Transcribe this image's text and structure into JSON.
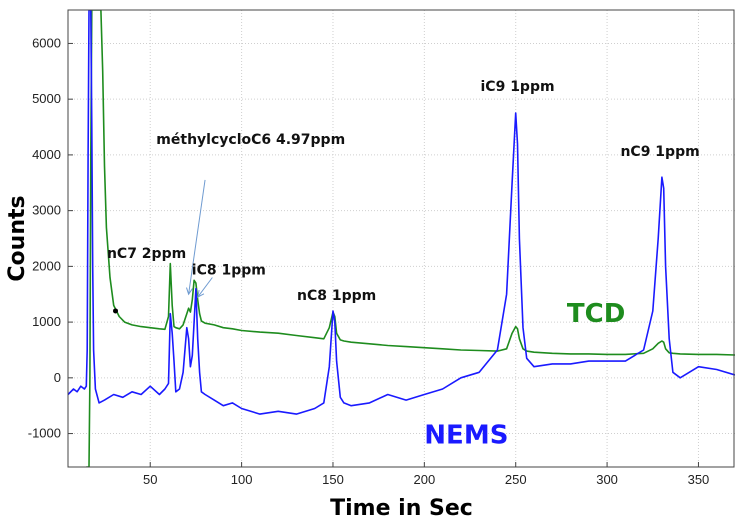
{
  "chart_data": {
    "type": "line",
    "xlabel": "Time in Sec",
    "ylabel": "Counts",
    "xlim": [
      5,
      370
    ],
    "ylim": [
      -1600,
      6600
    ],
    "xticks": [
      50,
      100,
      150,
      200,
      250,
      300,
      350
    ],
    "yticks": [
      -1000,
      0,
      1000,
      2000,
      3000,
      4000,
      5000,
      6000
    ],
    "grid": true,
    "colors": {
      "TCD": "#1e8c1e",
      "NEMS": "#1a1aff"
    },
    "series": [
      {
        "name": "TCD",
        "x": [
          15,
          15.5,
          16.5,
          17,
          17.5,
          18,
          18.5,
          19,
          20,
          21,
          22,
          23,
          24,
          25,
          26,
          28,
          30,
          33,
          36,
          40,
          45,
          50,
          55,
          58,
          60,
          61,
          62,
          63,
          64,
          66,
          68,
          70,
          71,
          72,
          73,
          74,
          75,
          76,
          77,
          78,
          80,
          85,
          90,
          95,
          100,
          110,
          120,
          130,
          140,
          145,
          148,
          150,
          151,
          152,
          154,
          156,
          160,
          170,
          180,
          190,
          200,
          210,
          220,
          230,
          240,
          245,
          248,
          250,
          251,
          252,
          254,
          256,
          260,
          270,
          280,
          290,
          300,
          310,
          320,
          325,
          328,
          330,
          331,
          332,
          334,
          336,
          340,
          350,
          360,
          370
        ],
        "y": [
          -1600,
          -1600,
          -1600,
          0,
          4000,
          6600,
          6600,
          6600,
          6600,
          6600,
          6600,
          6600,
          5500,
          3800,
          2700,
          1800,
          1300,
          1100,
          1000,
          950,
          920,
          900,
          880,
          870,
          1100,
          2050,
          1300,
          920,
          900,
          880,
          950,
          1150,
          1250,
          1180,
          1400,
          1750,
          1700,
          1400,
          1150,
          1020,
          980,
          950,
          900,
          880,
          850,
          820,
          800,
          760,
          720,
          700,
          900,
          1180,
          1100,
          800,
          680,
          660,
          640,
          610,
          580,
          560,
          540,
          520,
          500,
          490,
          480,
          520,
          800,
          920,
          880,
          700,
          520,
          480,
          460,
          440,
          430,
          430,
          420,
          420,
          440,
          520,
          620,
          660,
          640,
          520,
          450,
          440,
          430,
          420,
          420,
          410
        ]
      },
      {
        "name": "NEMS",
        "x": [
          5,
          8,
          10,
          12,
          14,
          15,
          15.5,
          16,
          16.5,
          17,
          17.5,
          18,
          18.5,
          19,
          20,
          22,
          25,
          30,
          35,
          40,
          45,
          50,
          55,
          58,
          60,
          61,
          62,
          63,
          64,
          66,
          68,
          70,
          71,
          72,
          73,
          74,
          75,
          76,
          77,
          78,
          80,
          85,
          90,
          95,
          100,
          110,
          120,
          130,
          140,
          145,
          148,
          150,
          151,
          152,
          154,
          156,
          160,
          170,
          180,
          190,
          200,
          210,
          220,
          230,
          240,
          245,
          248,
          250,
          251,
          252,
          254,
          256,
          260,
          270,
          280,
          290,
          300,
          310,
          320,
          325,
          328,
          330,
          331,
          332,
          334,
          336,
          340,
          350,
          360,
          370
        ],
        "y": [
          -300,
          -200,
          -250,
          -150,
          -200,
          -150,
          500,
          4000,
          6600,
          6600,
          6600,
          4500,
          2000,
          500,
          -200,
          -450,
          -400,
          -300,
          -350,
          -250,
          -300,
          -150,
          -300,
          -200,
          -100,
          1150,
          800,
          300,
          -250,
          -200,
          100,
          900,
          700,
          200,
          400,
          1000,
          1600,
          700,
          100,
          -250,
          -300,
          -400,
          -500,
          -450,
          -550,
          -650,
          -600,
          -650,
          -550,
          -450,
          200,
          1200,
          1000,
          300,
          -350,
          -450,
          -500,
          -450,
          -300,
          -400,
          -300,
          -200,
          0,
          100,
          500,
          1500,
          3500,
          4750,
          4200,
          2500,
          900,
          350,
          200,
          250,
          250,
          300,
          300,
          300,
          500,
          1200,
          2500,
          3600,
          3400,
          2000,
          700,
          100,
          0,
          200,
          150,
          50
        ]
      }
    ],
    "annotations": [
      {
        "text": "méthylcycloC6 4.97ppm",
        "x": 105,
        "y": 4200
      },
      {
        "text": "nC7 2ppm",
        "x": 48,
        "y": 2150
      },
      {
        "text": "iC8 1ppm",
        "x": 93,
        "y": 1850
      },
      {
        "text": "nC8 1ppm",
        "x": 152,
        "y": 1400
      },
      {
        "text": "iC9 1ppm",
        "x": 251,
        "y": 5150
      },
      {
        "text": "nC9 1ppm",
        "x": 329,
        "y": 3980
      }
    ],
    "arrows": [
      {
        "from": [
          80,
          3550
        ],
        "to": [
          71,
          1500
        ]
      },
      {
        "from": [
          84,
          1800
        ],
        "to": [
          76,
          1450
        ]
      }
    ],
    "legend_labels": [
      {
        "text": "TCD",
        "series": "TCD",
        "x": 294,
        "y": 1000
      },
      {
        "text": "NEMS",
        "series": "NEMS",
        "x": 223,
        "y": -1180
      }
    ],
    "marker": {
      "x": 31,
      "y": 1200
    }
  }
}
